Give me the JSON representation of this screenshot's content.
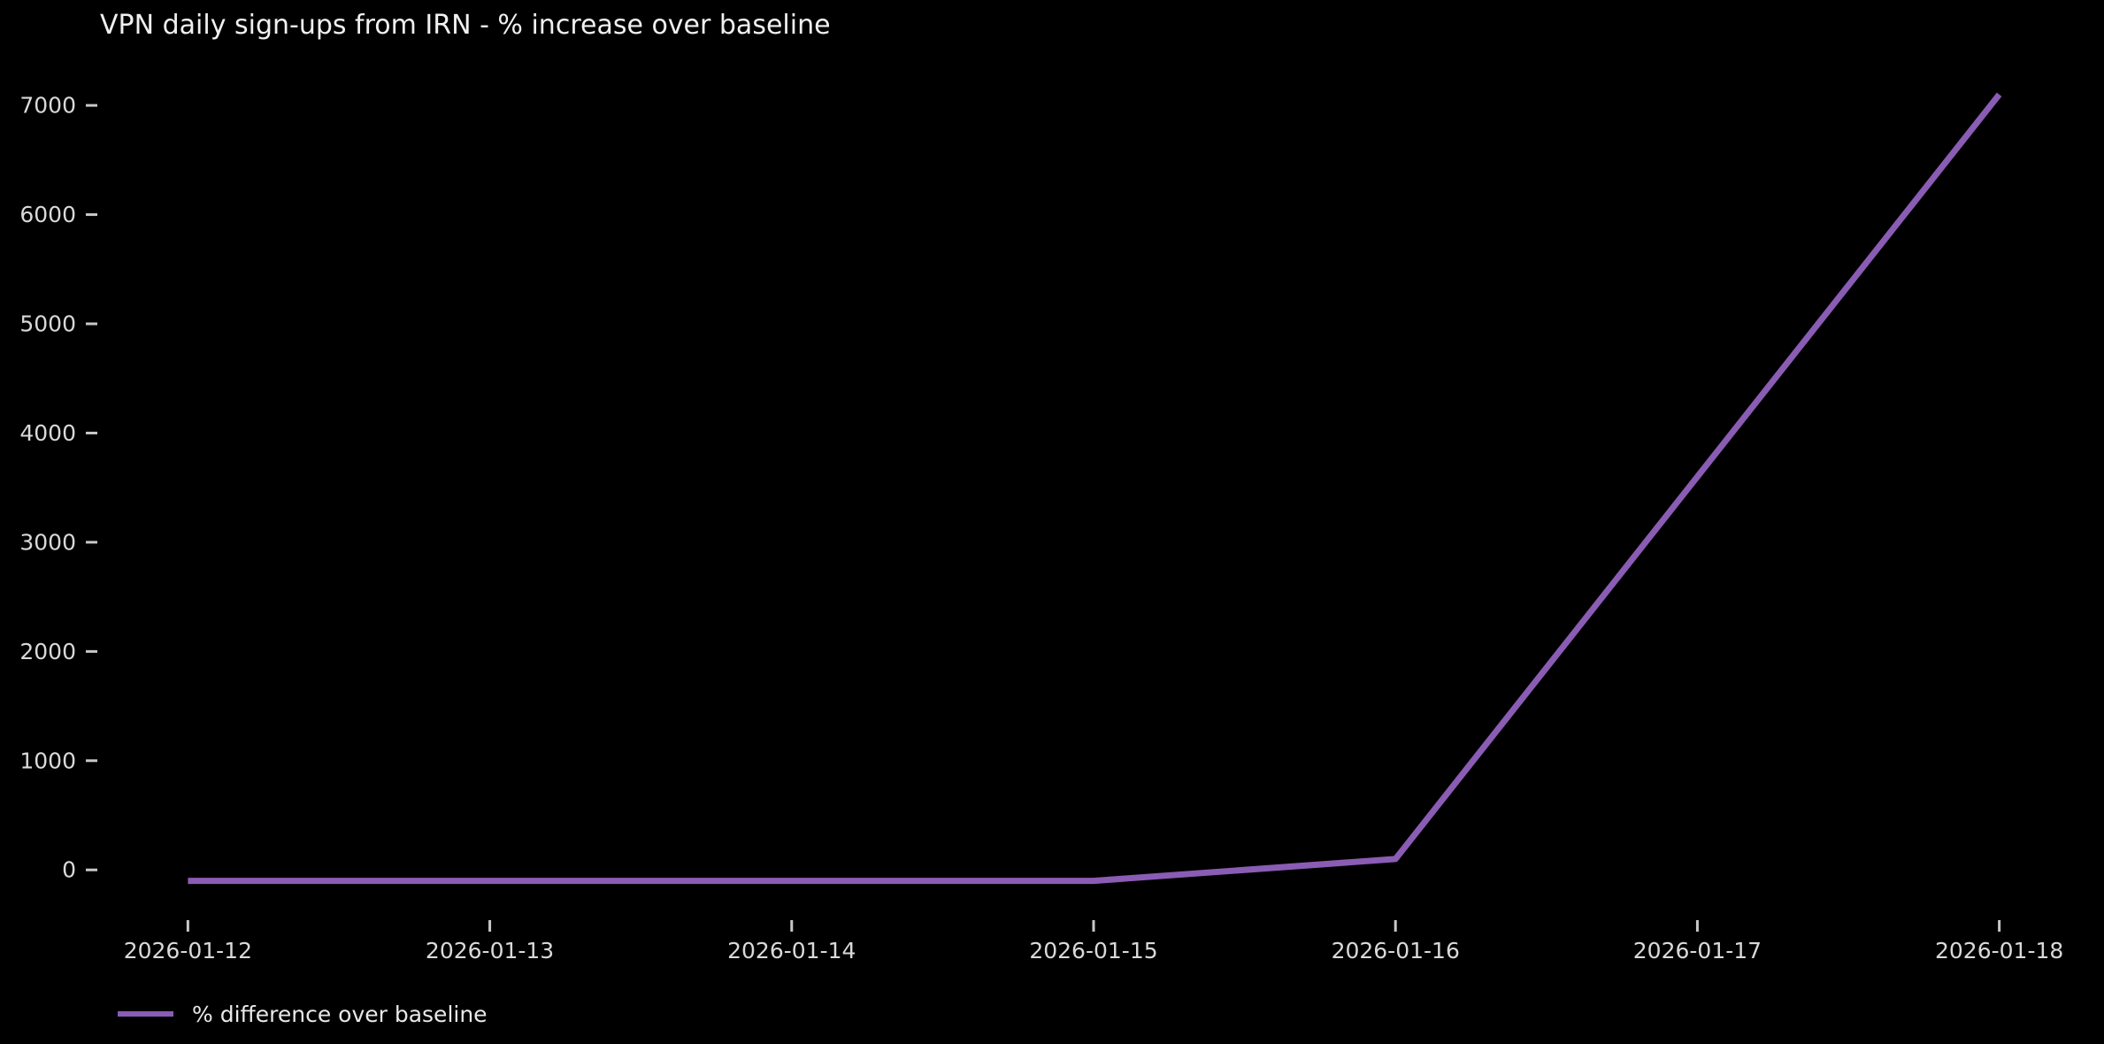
{
  "chart_data": {
    "type": "line",
    "title": "VPN daily sign-ups from IRN - % increase over baseline",
    "x": [
      "2026-01-12",
      "2026-01-13",
      "2026-01-14",
      "2026-01-15",
      "2026-01-16",
      "2026-01-17",
      "2026-01-18"
    ],
    "series": [
      {
        "name": "% difference over baseline",
        "values": [
          -100,
          -100,
          -100,
          -100,
          100,
          3600,
          7100
        ]
      }
    ],
    "xlabel": "",
    "ylabel": "",
    "yticks": [
      0,
      1000,
      2000,
      3000,
      4000,
      5000,
      6000,
      7000
    ],
    "ylim": [
      -460,
      7560
    ],
    "grid": false,
    "legend": {
      "entries": [
        "% difference over baseline"
      ],
      "position": "bottom-left"
    },
    "colors": {
      "background": "#000000",
      "line": "#8a5cb4",
      "title_text": "#f0f0f0",
      "tick_label": "#d9d9d9",
      "tick_mark": "#c8c8c8",
      "legend_text": "#e8e8e8"
    }
  }
}
